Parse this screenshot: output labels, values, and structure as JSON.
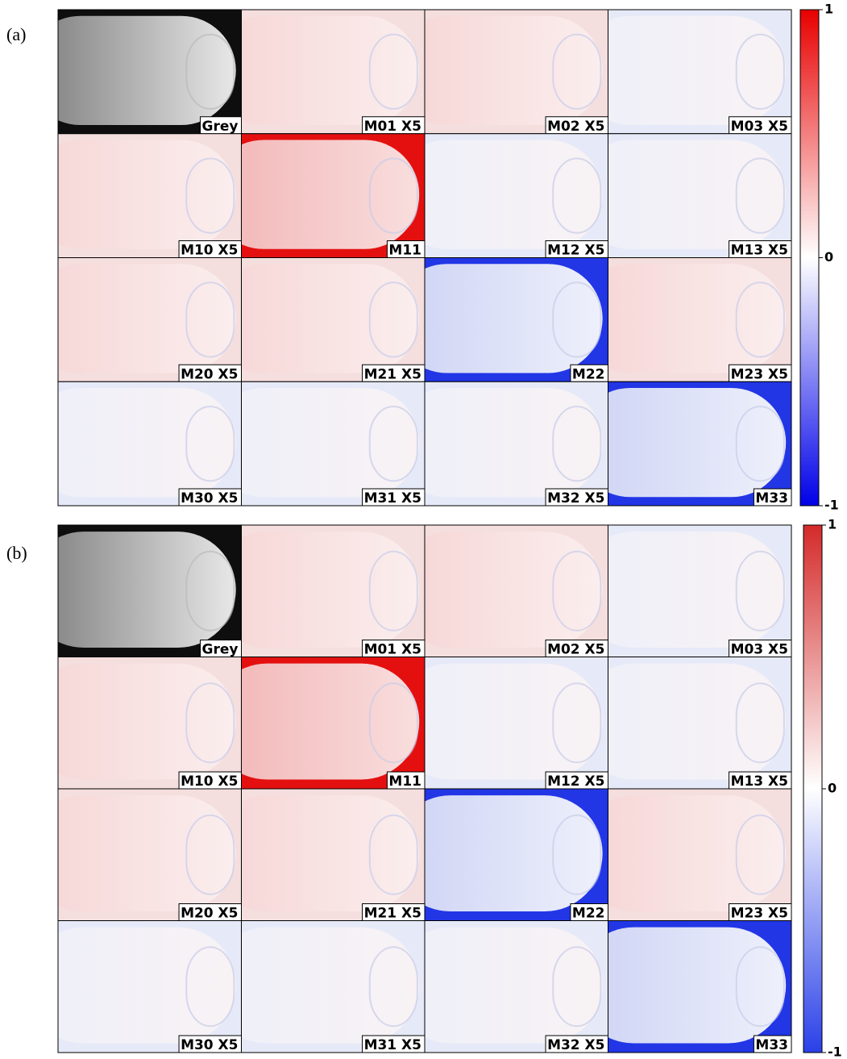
{
  "panels": [
    {
      "label": "(a)",
      "tiles": [
        "Grey",
        "M01 X5",
        "M02 X5",
        "M03 X5",
        "M10 X5",
        "M11",
        "M12 X5",
        "M13 X5",
        "M20 X5",
        "M21 X5",
        "M22",
        "M23 X5",
        "M30 X5",
        "M31 X5",
        "M32 X5",
        "M33"
      ],
      "colorbar_ticks": [
        1,
        0,
        -1
      ]
    },
    {
      "label": "(b)",
      "tiles": [
        "Grey",
        "M01 X5",
        "M02 X5",
        "M03 X5",
        "M10 X5",
        "M11",
        "M12 X5",
        "M13 X5",
        "M20 X5",
        "M21 X5",
        "M22",
        "M23 X5",
        "M30 X5",
        "M31 X5",
        "M32 X5",
        "M33"
      ],
      "colorbar_ticks": [
        1,
        0,
        -1
      ]
    }
  ]
}
